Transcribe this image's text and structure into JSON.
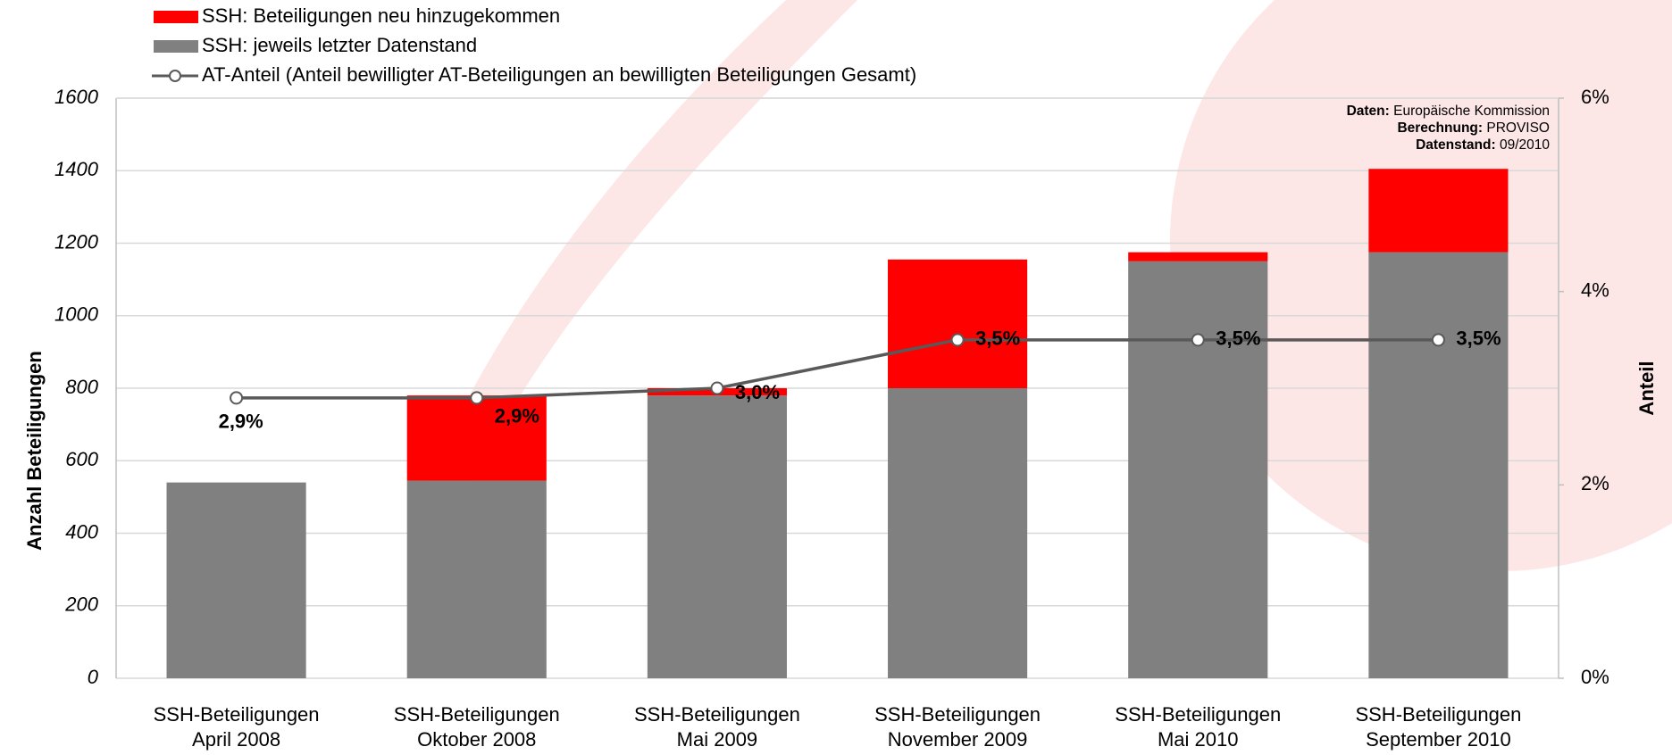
{
  "chart_data": {
    "type": "bar",
    "stacked": true,
    "categories": [
      [
        "SSH-Beteiligungen",
        "April 2008"
      ],
      [
        "SSH-Beteiligungen",
        "Oktober 2008"
      ],
      [
        "SSH-Beteiligungen",
        "Mai 2009"
      ],
      [
        "SSH-Beteiligungen",
        "November 2009"
      ],
      [
        "SSH-Beteiligungen",
        "Mai 2010"
      ],
      [
        "SSH-Beteiligungen",
        "September 2010"
      ]
    ],
    "y_label": "Anzahl Beteiligungen",
    "y2_label": "Anteil",
    "ylim": [
      0,
      1600
    ],
    "yticks": [
      0,
      200,
      400,
      600,
      800,
      1000,
      1200,
      1400,
      1600
    ],
    "y2lim": [
      0,
      6
    ],
    "y2ticks": [
      {
        "value": 0,
        "label": "0%"
      },
      {
        "value": 2,
        "label": "2%"
      },
      {
        "value": 4,
        "label": "4%"
      },
      {
        "value": 6,
        "label": "6%"
      }
    ],
    "grid": true,
    "series": [
      {
        "name": "SSH: jeweils letzter Datenstand",
        "color": "#808080",
        "values": [
          540,
          545,
          780,
          800,
          1150,
          1175
        ]
      },
      {
        "name": "SSH: Beteiligungen neu hinzugekommen",
        "color": "#ff0000",
        "values": [
          0,
          235,
          20,
          355,
          25,
          230
        ]
      },
      {
        "name": "AT-Anteil (Anteil bewilligter AT-Beteiligungen an bewilligten Beteiligungen Gesamt)",
        "type": "line",
        "axis": "y2",
        "color": "#595959",
        "values": [
          2.9,
          2.9,
          3.0,
          3.5,
          3.5,
          3.5
        ],
        "value_labels": [
          "2,9%",
          "2,9%",
          "3,0%",
          "3,5%",
          "3,5%",
          "3,5%"
        ]
      }
    ],
    "source_notes": [
      {
        "label": "Daten:",
        "text": "Europäische Kommission"
      },
      {
        "label": "Berechnung:",
        "text": "PROVISO"
      },
      {
        "label": "Datenstand:",
        "text": "09/2010"
      }
    ]
  }
}
